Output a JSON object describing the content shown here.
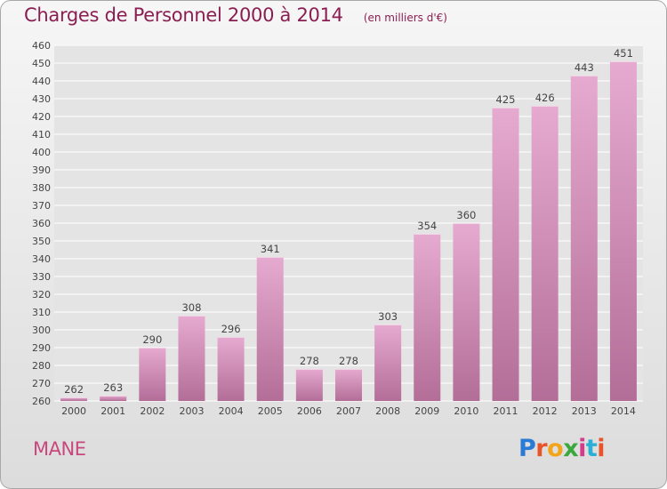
{
  "header": {
    "title": "Charges de Personnel 2000 à 2014",
    "subtitle": "(en milliers d'€)"
  },
  "footer": {
    "commune": "MANE",
    "logo_text": "Proxiti",
    "logo_colors": [
      "#2a7bd6",
      "#e8542a",
      "#f2a51a",
      "#3aa83a",
      "#d63a8a",
      "#2ab0d6",
      "#e8542a"
    ]
  },
  "colors": {
    "bar_light": "#e6aad0",
    "bar_dark": "#b36e98",
    "grid": "#ffffff",
    "axis_text": "#444444",
    "title": "#8a1e52"
  },
  "chart_data": {
    "type": "bar",
    "categories": [
      "2000",
      "2001",
      "2002",
      "2003",
      "2004",
      "2005",
      "2006",
      "2007",
      "2008",
      "2009",
      "2010",
      "2011",
      "2012",
      "2013",
      "2014"
    ],
    "values": [
      262,
      263,
      290,
      308,
      296,
      341,
      278,
      278,
      303,
      354,
      360,
      425,
      426,
      443,
      451
    ],
    "ylim": [
      260,
      460
    ],
    "ytick_step": 10,
    "title": "Charges de Personnel 2000 à 2014",
    "xlabel": "",
    "ylabel": "",
    "grid": true
  }
}
